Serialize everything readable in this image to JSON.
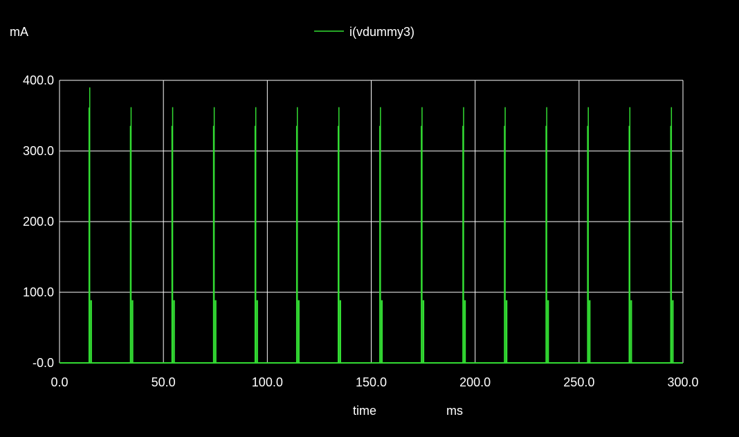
{
  "chart_data": {
    "type": "line",
    "ylabel": "mA",
    "xlabel": "time",
    "xunit": "ms",
    "xlim": [
      0,
      300
    ],
    "ylim": [
      0,
      400
    ],
    "x_ticks": [
      "0.0",
      "50.0",
      "100.0",
      "150.0",
      "200.0",
      "250.0",
      "300.0"
    ],
    "y_ticks": [
      "-0.0",
      "100.0",
      "200.0",
      "300.0",
      "400.0"
    ],
    "grid": true,
    "legend_position": "top-center",
    "colors": {
      "background": "#000000",
      "grid": "#ffffff",
      "axis_text": "#ffffff",
      "series": "#33dd33"
    },
    "series": [
      {
        "name": "i(vdummy3)",
        "pulses": [
          {
            "t": 14.2,
            "peak": 390
          },
          {
            "t": 34.1,
            "peak": 362
          },
          {
            "t": 54.1,
            "peak": 362
          },
          {
            "t": 74.1,
            "peak": 362
          },
          {
            "t": 94.1,
            "peak": 362
          },
          {
            "t": 114.1,
            "peak": 362
          },
          {
            "t": 134.1,
            "peak": 362
          },
          {
            "t": 154.1,
            "peak": 362
          },
          {
            "t": 174.1,
            "peak": 362
          },
          {
            "t": 194.1,
            "peak": 362
          },
          {
            "t": 214.1,
            "peak": 362
          },
          {
            "t": 234.1,
            "peak": 362
          },
          {
            "t": 254.1,
            "peak": 362
          },
          {
            "t": 274.1,
            "peak": 362
          },
          {
            "t": 294.1,
            "peak": 362
          }
        ]
      }
    ]
  }
}
